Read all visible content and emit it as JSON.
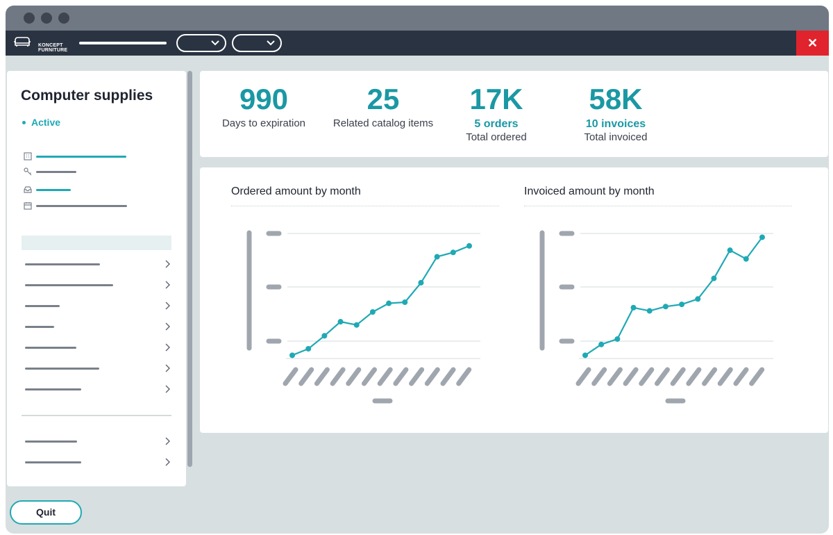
{
  "app": {
    "brand": "KONCEPT FURNITURE",
    "brand_line1": "KONCEPT",
    "brand_line2": "FURNITURE"
  },
  "window": {
    "close_label": "✕"
  },
  "sidebar": {
    "title": "Computer supplies",
    "status": "Active"
  },
  "stats": [
    {
      "value": "990",
      "sub": "",
      "label": "Days to expiration"
    },
    {
      "value": "25",
      "sub": "",
      "label": "Related catalog items"
    },
    {
      "value": "17K",
      "sub": "5 orders",
      "label": "Total ordered"
    },
    {
      "value": "58K",
      "sub": "10 invoices",
      "label": "Total invoiced"
    }
  ],
  "footer": {
    "quit_label": "Quit"
  },
  "colors": {
    "accent": "#1fa9b5",
    "nav": "#2a3342",
    "close": "#e0232c",
    "placeholder": "#a0a6ae"
  },
  "chart_data": [
    {
      "type": "line",
      "title": "Ordered amount by month",
      "x": [
        1,
        2,
        3,
        4,
        5,
        6,
        7,
        8,
        9,
        10,
        11,
        12
      ],
      "series": [
        {
          "values": [
            1.5,
            4.5,
            10.5,
            17,
            15.5,
            21.5,
            25.5,
            26,
            35,
            47,
            49,
            52
          ]
        }
      ],
      "ylim": [
        0,
        60
      ],
      "grid": true
    },
    {
      "type": "line",
      "title": "Invoiced amount by month",
      "x": [
        1,
        2,
        3,
        4,
        5,
        6,
        7,
        8,
        9,
        10,
        11,
        12
      ],
      "series": [
        {
          "values": [
            1.5,
            6.5,
            9,
            23.5,
            22,
            24,
            25,
            27.5,
            37,
            50,
            46,
            56
          ]
        }
      ],
      "ylim": [
        0,
        60
      ],
      "grid": true
    }
  ]
}
